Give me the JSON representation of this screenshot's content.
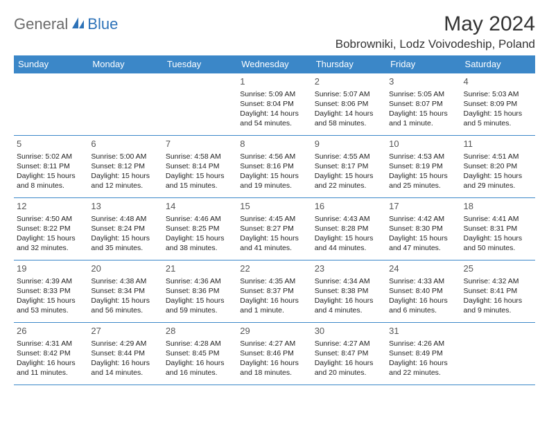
{
  "logo": {
    "general": "General",
    "blue": "Blue"
  },
  "title": "May 2024",
  "location": "Bobrowniki, Lodz Voivodeship, Poland",
  "colors": {
    "header_bg": "#3b87c8",
    "header_text": "#ffffff",
    "border": "#3b87c8",
    "logo_gray": "#6a6a6a",
    "logo_blue": "#2d72b8",
    "text": "#222222",
    "daynum": "#555555",
    "background": "#ffffff"
  },
  "weekdays": [
    "Sunday",
    "Monday",
    "Tuesday",
    "Wednesday",
    "Thursday",
    "Friday",
    "Saturday"
  ],
  "weeks": [
    [
      null,
      null,
      null,
      {
        "n": "1",
        "sr": "5:09 AM",
        "ss": "8:04 PM",
        "dl": "14 hours and 54 minutes."
      },
      {
        "n": "2",
        "sr": "5:07 AM",
        "ss": "8:06 PM",
        "dl": "14 hours and 58 minutes."
      },
      {
        "n": "3",
        "sr": "5:05 AM",
        "ss": "8:07 PM",
        "dl": "15 hours and 1 minute."
      },
      {
        "n": "4",
        "sr": "5:03 AM",
        "ss": "8:09 PM",
        "dl": "15 hours and 5 minutes."
      }
    ],
    [
      {
        "n": "5",
        "sr": "5:02 AM",
        "ss": "8:11 PM",
        "dl": "15 hours and 8 minutes."
      },
      {
        "n": "6",
        "sr": "5:00 AM",
        "ss": "8:12 PM",
        "dl": "15 hours and 12 minutes."
      },
      {
        "n": "7",
        "sr": "4:58 AM",
        "ss": "8:14 PM",
        "dl": "15 hours and 15 minutes."
      },
      {
        "n": "8",
        "sr": "4:56 AM",
        "ss": "8:16 PM",
        "dl": "15 hours and 19 minutes."
      },
      {
        "n": "9",
        "sr": "4:55 AM",
        "ss": "8:17 PM",
        "dl": "15 hours and 22 minutes."
      },
      {
        "n": "10",
        "sr": "4:53 AM",
        "ss": "8:19 PM",
        "dl": "15 hours and 25 minutes."
      },
      {
        "n": "11",
        "sr": "4:51 AM",
        "ss": "8:20 PM",
        "dl": "15 hours and 29 minutes."
      }
    ],
    [
      {
        "n": "12",
        "sr": "4:50 AM",
        "ss": "8:22 PM",
        "dl": "15 hours and 32 minutes."
      },
      {
        "n": "13",
        "sr": "4:48 AM",
        "ss": "8:24 PM",
        "dl": "15 hours and 35 minutes."
      },
      {
        "n": "14",
        "sr": "4:46 AM",
        "ss": "8:25 PM",
        "dl": "15 hours and 38 minutes."
      },
      {
        "n": "15",
        "sr": "4:45 AM",
        "ss": "8:27 PM",
        "dl": "15 hours and 41 minutes."
      },
      {
        "n": "16",
        "sr": "4:43 AM",
        "ss": "8:28 PM",
        "dl": "15 hours and 44 minutes."
      },
      {
        "n": "17",
        "sr": "4:42 AM",
        "ss": "8:30 PM",
        "dl": "15 hours and 47 minutes."
      },
      {
        "n": "18",
        "sr": "4:41 AM",
        "ss": "8:31 PM",
        "dl": "15 hours and 50 minutes."
      }
    ],
    [
      {
        "n": "19",
        "sr": "4:39 AM",
        "ss": "8:33 PM",
        "dl": "15 hours and 53 minutes."
      },
      {
        "n": "20",
        "sr": "4:38 AM",
        "ss": "8:34 PM",
        "dl": "15 hours and 56 minutes."
      },
      {
        "n": "21",
        "sr": "4:36 AM",
        "ss": "8:36 PM",
        "dl": "15 hours and 59 minutes."
      },
      {
        "n": "22",
        "sr": "4:35 AM",
        "ss": "8:37 PM",
        "dl": "16 hours and 1 minute."
      },
      {
        "n": "23",
        "sr": "4:34 AM",
        "ss": "8:38 PM",
        "dl": "16 hours and 4 minutes."
      },
      {
        "n": "24",
        "sr": "4:33 AM",
        "ss": "8:40 PM",
        "dl": "16 hours and 6 minutes."
      },
      {
        "n": "25",
        "sr": "4:32 AM",
        "ss": "8:41 PM",
        "dl": "16 hours and 9 minutes."
      }
    ],
    [
      {
        "n": "26",
        "sr": "4:31 AM",
        "ss": "8:42 PM",
        "dl": "16 hours and 11 minutes."
      },
      {
        "n": "27",
        "sr": "4:29 AM",
        "ss": "8:44 PM",
        "dl": "16 hours and 14 minutes."
      },
      {
        "n": "28",
        "sr": "4:28 AM",
        "ss": "8:45 PM",
        "dl": "16 hours and 16 minutes."
      },
      {
        "n": "29",
        "sr": "4:27 AM",
        "ss": "8:46 PM",
        "dl": "16 hours and 18 minutes."
      },
      {
        "n": "30",
        "sr": "4:27 AM",
        "ss": "8:47 PM",
        "dl": "16 hours and 20 minutes."
      },
      {
        "n": "31",
        "sr": "4:26 AM",
        "ss": "8:49 PM",
        "dl": "16 hours and 22 minutes."
      },
      null
    ]
  ],
  "labels": {
    "sunrise": "Sunrise:",
    "sunset": "Sunset:",
    "daylight": "Daylight:"
  }
}
